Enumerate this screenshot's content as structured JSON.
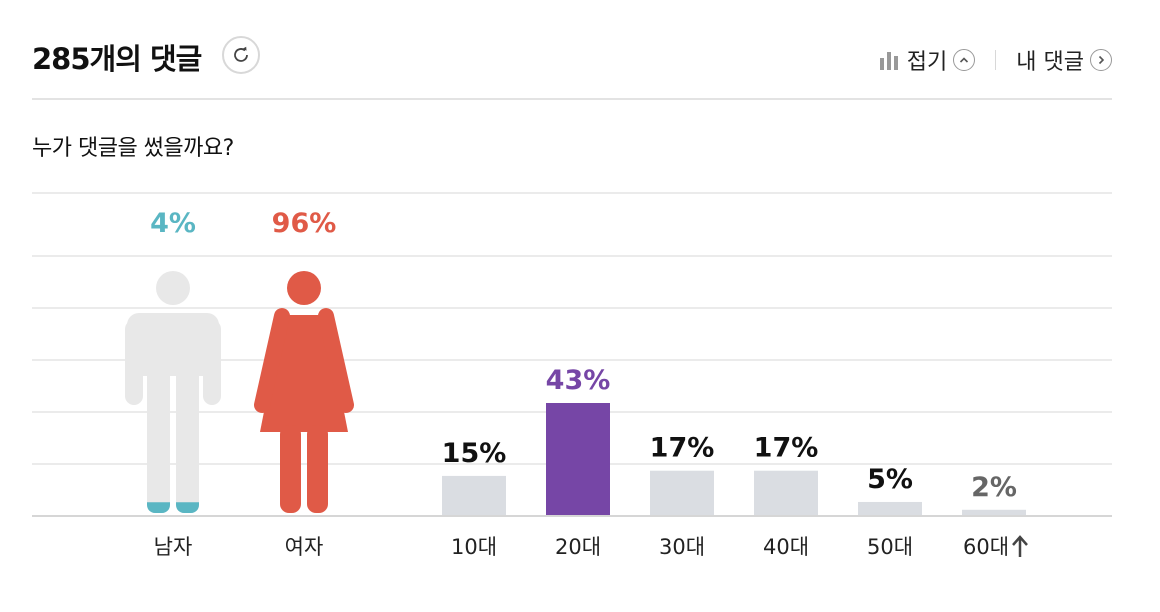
{
  "header": {
    "count": "285",
    "title_suffix": "개의 댓글",
    "collapse_label": "접기",
    "my_comments_label": "내 댓글",
    "icons": [
      "refresh-icon",
      "bar-chart-icon",
      "chevron-up-icon",
      "chevron-right-icon"
    ]
  },
  "question": "누가 댓글을 썼을까요?",
  "chart_data": {
    "type": "bar",
    "gender": [
      {
        "label": "남자",
        "value": 4,
        "value_label": "4%",
        "color": "#5ab6c3"
      },
      {
        "label": "여자",
        "value": 96,
        "value_label": "96%",
        "color": "#e05a47"
      }
    ],
    "age": {
      "categories": [
        "10대",
        "20대",
        "30대",
        "40대",
        "50대",
        "60대"
      ],
      "values": [
        15,
        43,
        17,
        17,
        5,
        2
      ],
      "value_labels": [
        "15%",
        "43%",
        "17%",
        "17%",
        "5%",
        "2%"
      ],
      "highlight": "20대",
      "highlight_color": "#7646a6",
      "bar_color": "#dadde2",
      "last_label_color": "#666666"
    },
    "colors": {
      "grid": "#ebebeb",
      "figure_gray": "#e8e8e8"
    },
    "grid": true
  }
}
